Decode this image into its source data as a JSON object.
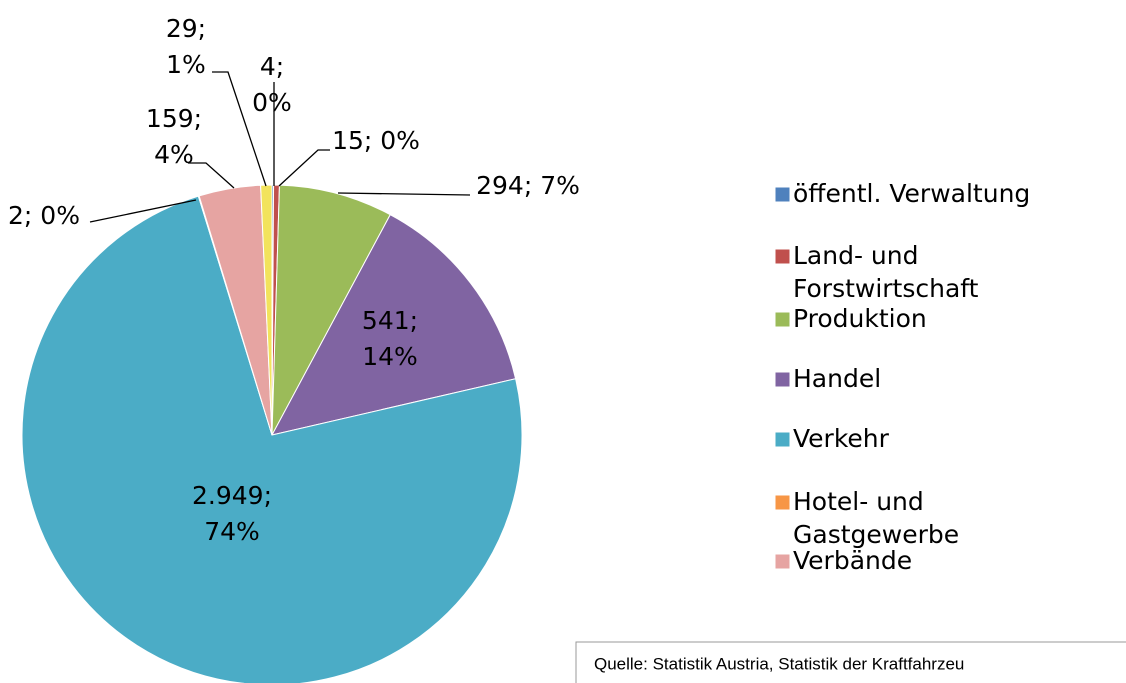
{
  "chart_data": {
    "type": "pie",
    "categories": [
      "öffentl. Verwaltung",
      "Land- und Forstwirtschaft",
      "Produktion",
      "Handel",
      "Verkehr",
      "Hotel- und Gastgewerbe",
      "Verbände",
      null
    ],
    "values": [
      4,
      15,
      294,
      541,
      2949,
      2,
      159,
      29
    ],
    "value_labels": [
      "4; 0%",
      "15; 0%",
      "294; 7%",
      "541; 14%",
      "2.949; 74%",
      "2; 0%",
      "159; 4%",
      "29; 1%"
    ],
    "colors": [
      "#4f81bd",
      "#c0504d",
      "#9bbb59",
      "#8064a2",
      "#4bacc6",
      "#f79646",
      "#e6a4a2",
      "#f2e35c"
    ],
    "legend": "right",
    "source": "Quelle: Statistik Austria, Statistik  der Kraftfahrzeu"
  }
}
